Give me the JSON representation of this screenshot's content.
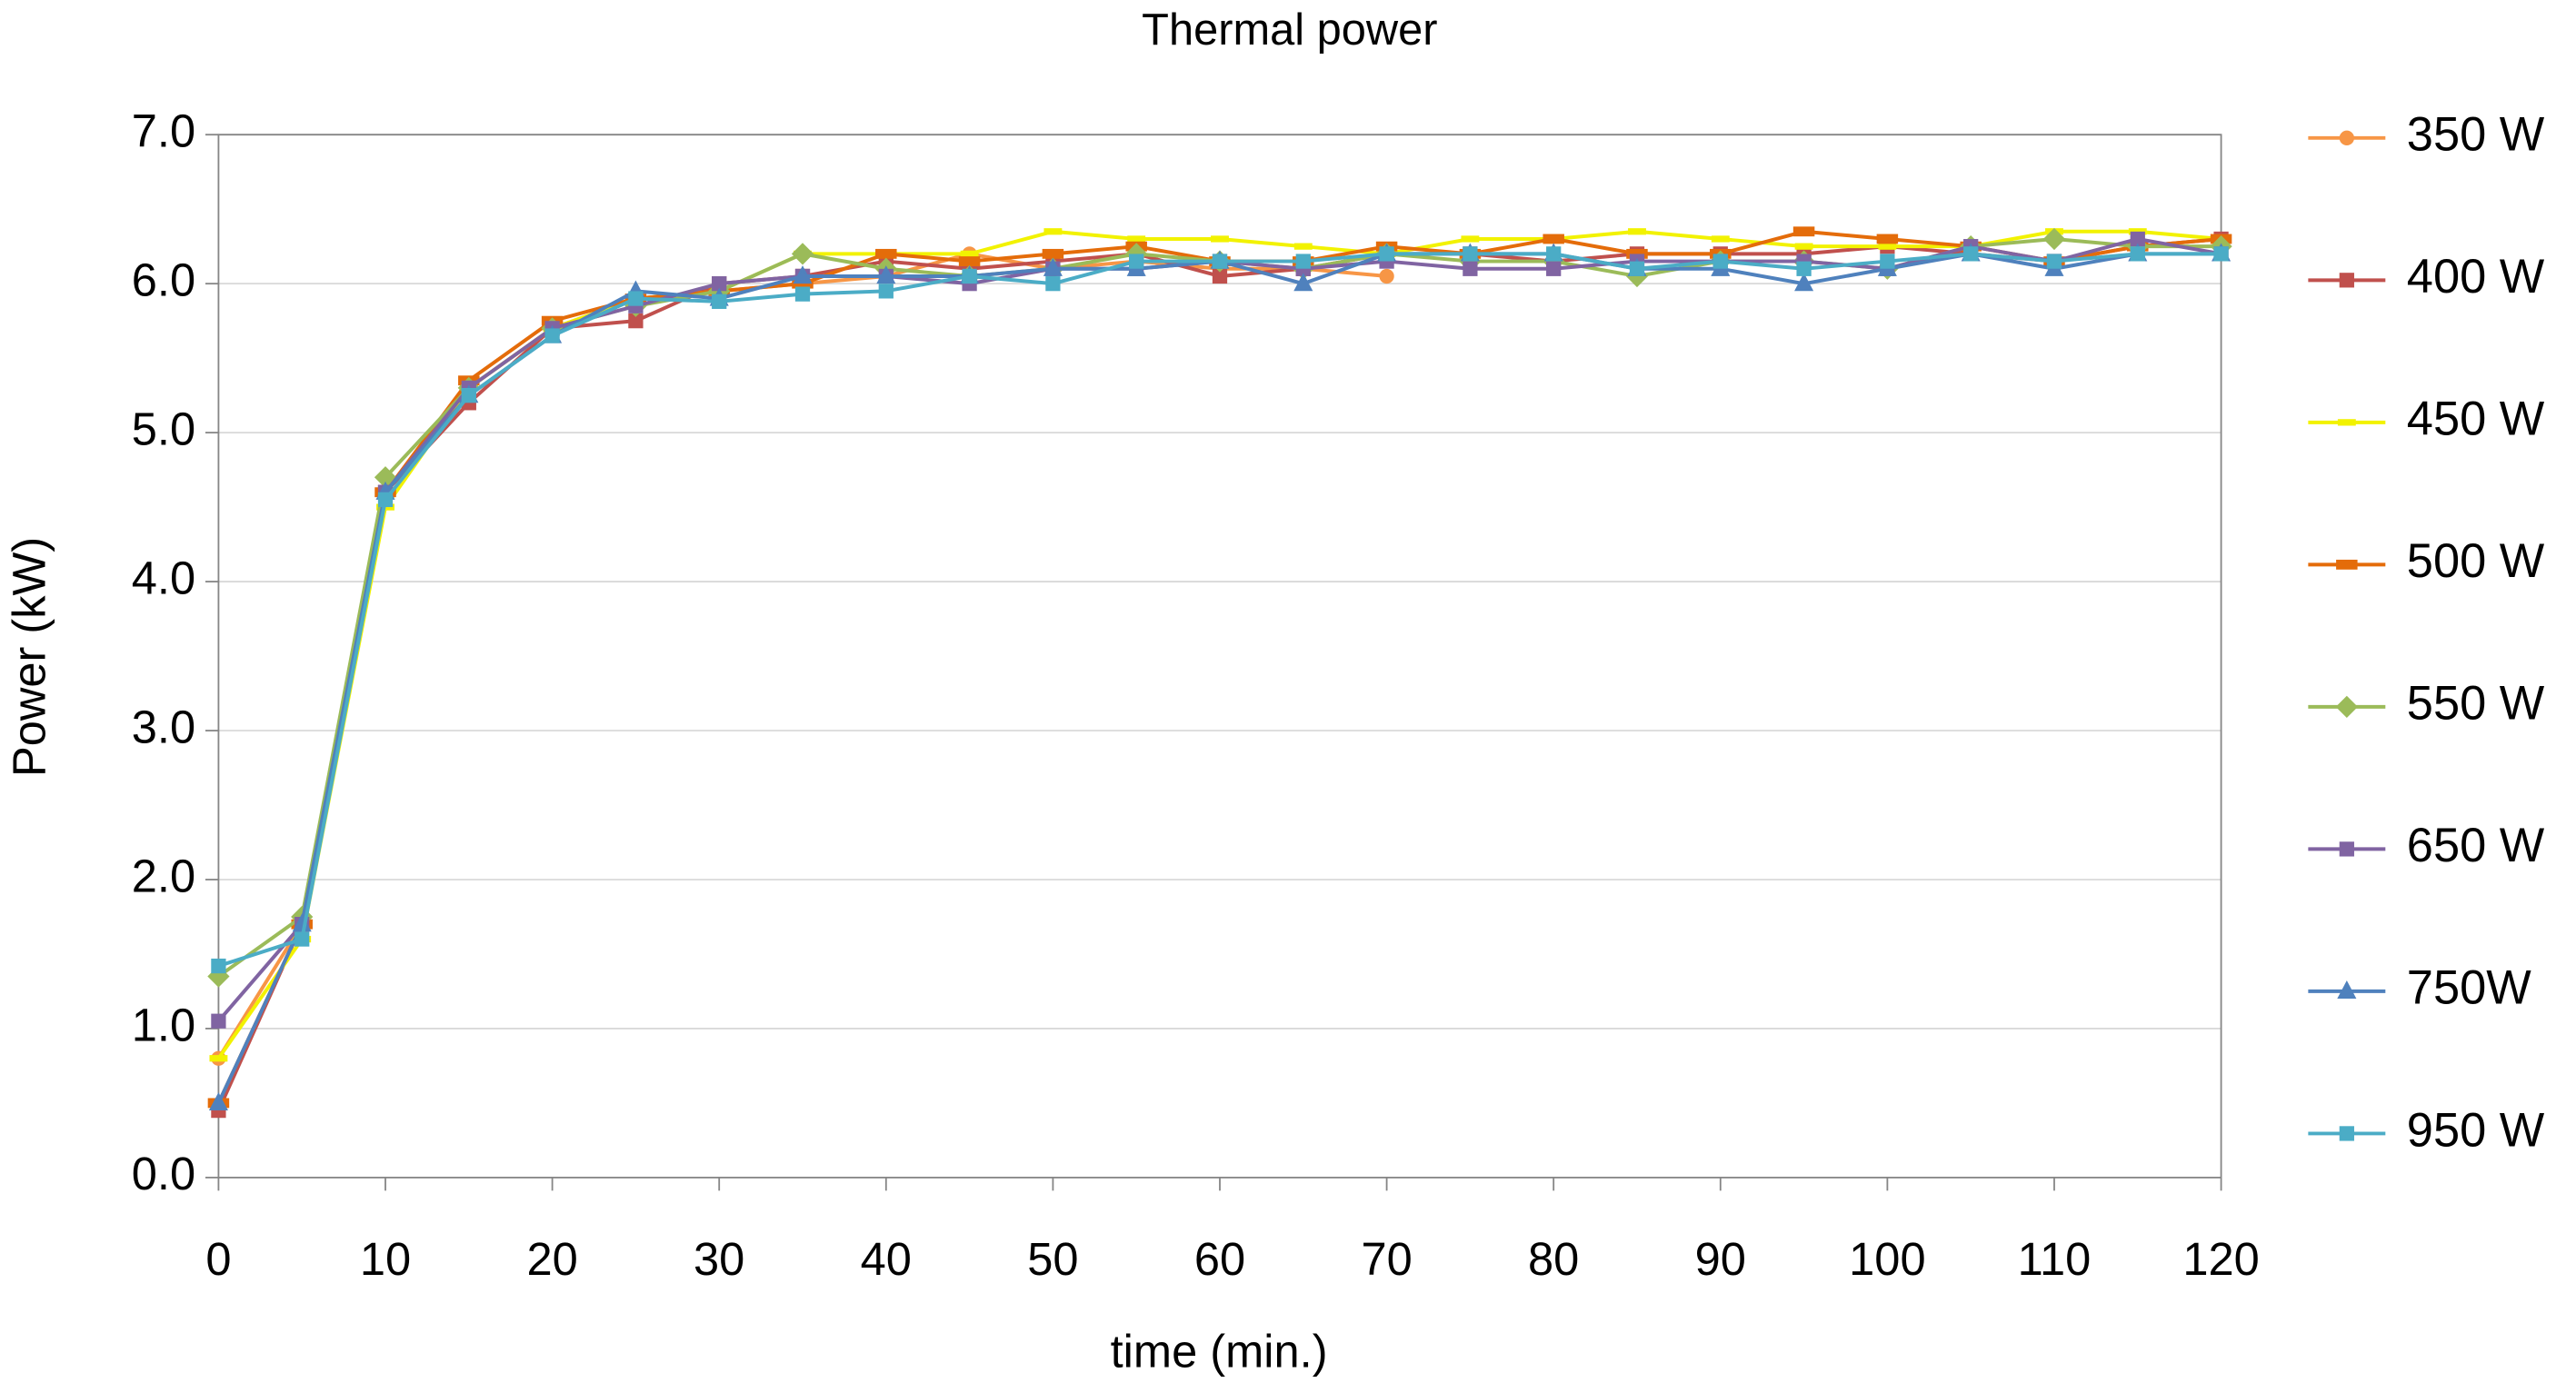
{
  "chart_data": {
    "type": "line",
    "title": "Thermal power",
    "x_label": "time (min.)",
    "y_label": "Power (kW)",
    "x": [
      0,
      5,
      10,
      15,
      20,
      25,
      30,
      35,
      40,
      45,
      50,
      55,
      60,
      65,
      70,
      75,
      80,
      85,
      90,
      95,
      100,
      105,
      110,
      115,
      120
    ],
    "xlim": [
      0,
      120
    ],
    "xticks": [
      0,
      10,
      20,
      30,
      40,
      50,
      60,
      70,
      80,
      90,
      100,
      110,
      120
    ],
    "ylim": [
      0,
      7
    ],
    "yticks": [
      {
        "value": 0,
        "label": "0.0"
      },
      {
        "value": 1,
        "label": "1.0"
      },
      {
        "value": 2,
        "label": "2.0"
      },
      {
        "value": 3,
        "label": "3.0"
      },
      {
        "value": 4,
        "label": "4.0"
      },
      {
        "value": 5,
        "label": "5.0"
      },
      {
        "value": 6,
        "label": "6.0"
      },
      {
        "value": 7,
        "label": "7.0"
      }
    ],
    "grid": true,
    "legend": "right",
    "series": [
      {
        "name": "350 W",
        "color": "#f79646",
        "marker": "circle",
        "values": [
          0.8,
          1.7,
          4.6,
          5.3,
          5.7,
          5.9,
          5.95,
          6.0,
          6.05,
          6.2,
          6.1,
          6.15,
          6.1,
          6.1,
          6.05,
          null,
          null,
          null,
          null,
          null,
          null,
          null,
          null,
          null,
          null
        ]
      },
      {
        "name": "400 W",
        "color": "#c0504d",
        "marker": "square",
        "values": [
          0.45,
          1.7,
          4.6,
          5.2,
          5.7,
          5.75,
          6.0,
          6.05,
          6.15,
          6.1,
          6.15,
          6.2,
          6.05,
          6.1,
          6.2,
          6.2,
          6.15,
          6.2,
          6.2,
          6.2,
          6.25,
          6.2,
          6.15,
          6.25,
          6.3
        ]
      },
      {
        "name": "450 W",
        "color": "#f2f200",
        "marker": "dash",
        "values": [
          0.8,
          1.6,
          4.5,
          5.3,
          5.7,
          5.9,
          5.95,
          6.2,
          6.2,
          6.2,
          6.35,
          6.3,
          6.3,
          6.25,
          6.2,
          6.3,
          6.3,
          6.35,
          6.3,
          6.25,
          6.25,
          6.25,
          6.35,
          6.35,
          6.3
        ]
      },
      {
        "name": "500 W",
        "color": "#e46c0a",
        "marker": "bar",
        "values": [
          0.5,
          1.7,
          4.6,
          5.35,
          5.75,
          5.9,
          5.95,
          6.0,
          6.2,
          6.15,
          6.2,
          6.25,
          6.15,
          6.15,
          6.25,
          6.2,
          6.3,
          6.2,
          6.2,
          6.35,
          6.3,
          6.25,
          6.15,
          6.25,
          6.3
        ]
      },
      {
        "name": "550 W",
        "color": "#9bbb59",
        "marker": "diamond",
        "values": [
          1.35,
          1.75,
          4.7,
          5.3,
          5.7,
          5.85,
          5.95,
          6.2,
          6.1,
          6.05,
          6.1,
          6.2,
          6.15,
          6.1,
          6.2,
          6.15,
          6.15,
          6.05,
          6.15,
          6.15,
          6.1,
          6.25,
          6.3,
          6.25,
          6.25
        ]
      },
      {
        "name": "650 W",
        "color": "#8064a2",
        "marker": "square",
        "values": [
          1.05,
          1.7,
          4.6,
          5.3,
          5.7,
          5.85,
          6.0,
          6.05,
          6.05,
          6.0,
          6.1,
          6.1,
          6.15,
          6.1,
          6.15,
          6.1,
          6.1,
          6.15,
          6.15,
          6.15,
          6.1,
          6.25,
          6.15,
          6.3,
          6.2
        ]
      },
      {
        "name": "750W",
        "color": "#4f81bd",
        "marker": "triangle",
        "values": [
          0.5,
          1.7,
          4.6,
          5.25,
          5.65,
          5.95,
          5.9,
          6.05,
          6.05,
          6.05,
          6.1,
          6.1,
          6.15,
          6.0,
          6.2,
          6.2,
          6.2,
          6.1,
          6.1,
          6.0,
          6.1,
          6.2,
          6.1,
          6.2,
          6.2
        ]
      },
      {
        "name": "950 W",
        "color": "#4bacc6",
        "marker": "square",
        "values": [
          1.42,
          1.6,
          4.55,
          5.25,
          5.65,
          5.9,
          5.88,
          5.93,
          5.95,
          6.05,
          6.0,
          6.15,
          6.15,
          6.15,
          6.2,
          6.2,
          6.2,
          6.1,
          6.15,
          6.1,
          6.15,
          6.2,
          6.15,
          6.2,
          6.2
        ]
      }
    ]
  }
}
